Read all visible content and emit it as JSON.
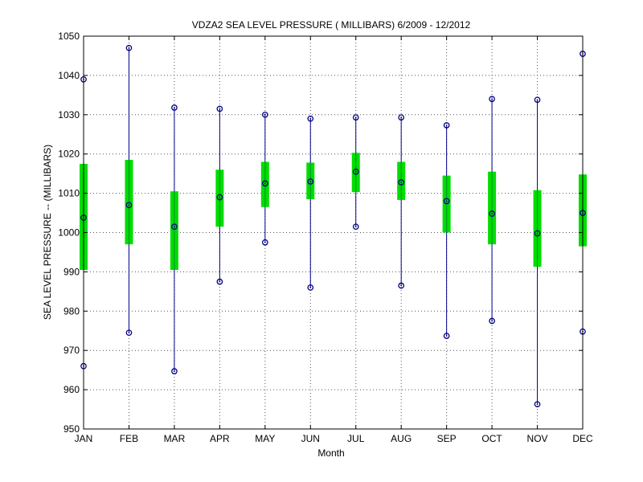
{
  "chart_data": {
    "type": "boxplot",
    "title": "VDZA2  SEA LEVEL PRESSURE ( MILLIBARS) 6/2009 - 12/2012",
    "xlabel": "Month",
    "ylabel": "SEA LEVEL PRESSURE -- (MILLIBARS)",
    "ylim": [
      950,
      1050
    ],
    "yticks": [
      950,
      960,
      970,
      980,
      990,
      1000,
      1010,
      1020,
      1030,
      1040,
      1050
    ],
    "grid": true,
    "categories": [
      "JAN",
      "FEB",
      "MAR",
      "APR",
      "MAY",
      "JUN",
      "JUL",
      "AUG",
      "SEP",
      "OCT",
      "NOV",
      "DEC"
    ],
    "series": [
      {
        "min": 966.0,
        "max": 1039.0,
        "box_low": 990.5,
        "box_high": 1017.5,
        "median": 1003.8
      },
      {
        "min": 974.5,
        "max": 1047.0,
        "box_low": 997.0,
        "box_high": 1018.5,
        "median": 1007.0
      },
      {
        "min": 964.7,
        "max": 1031.8,
        "box_low": 990.5,
        "box_high": 1010.5,
        "median": 1001.5
      },
      {
        "min": 987.5,
        "max": 1031.5,
        "box_low": 1001.5,
        "box_high": 1016.0,
        "median": 1009.0
      },
      {
        "min": 997.5,
        "max": 1030.0,
        "box_low": 1006.5,
        "box_high": 1018.0,
        "median": 1012.5
      },
      {
        "min": 986.0,
        "max": 1029.0,
        "box_low": 1008.5,
        "box_high": 1017.8,
        "median": 1013.0
      },
      {
        "min": 1001.5,
        "max": 1029.3,
        "box_low": 1010.3,
        "box_high": 1020.3,
        "median": 1015.5
      },
      {
        "min": 986.5,
        "max": 1029.3,
        "box_low": 1008.3,
        "box_high": 1018.0,
        "median": 1012.8
      },
      {
        "min": 973.7,
        "max": 1027.3,
        "box_low": 1000.0,
        "box_high": 1014.5,
        "median": 1008.0
      },
      {
        "min": 977.5,
        "max": 1034.0,
        "box_low": 997.0,
        "box_high": 1015.5,
        "median": 1004.8
      },
      {
        "min": 956.3,
        "max": 1033.8,
        "box_low": 991.3,
        "box_high": 1010.8,
        "median": 999.8
      },
      {
        "min": 974.8,
        "max": 1045.5,
        "box_low": 996.5,
        "box_high": 1014.8,
        "median": 1005.0
      }
    ],
    "colors": {
      "whisker": "#00008b",
      "box": "#00dd00",
      "marker": "#000080",
      "grid": "#555555",
      "axis": "#000000"
    }
  }
}
